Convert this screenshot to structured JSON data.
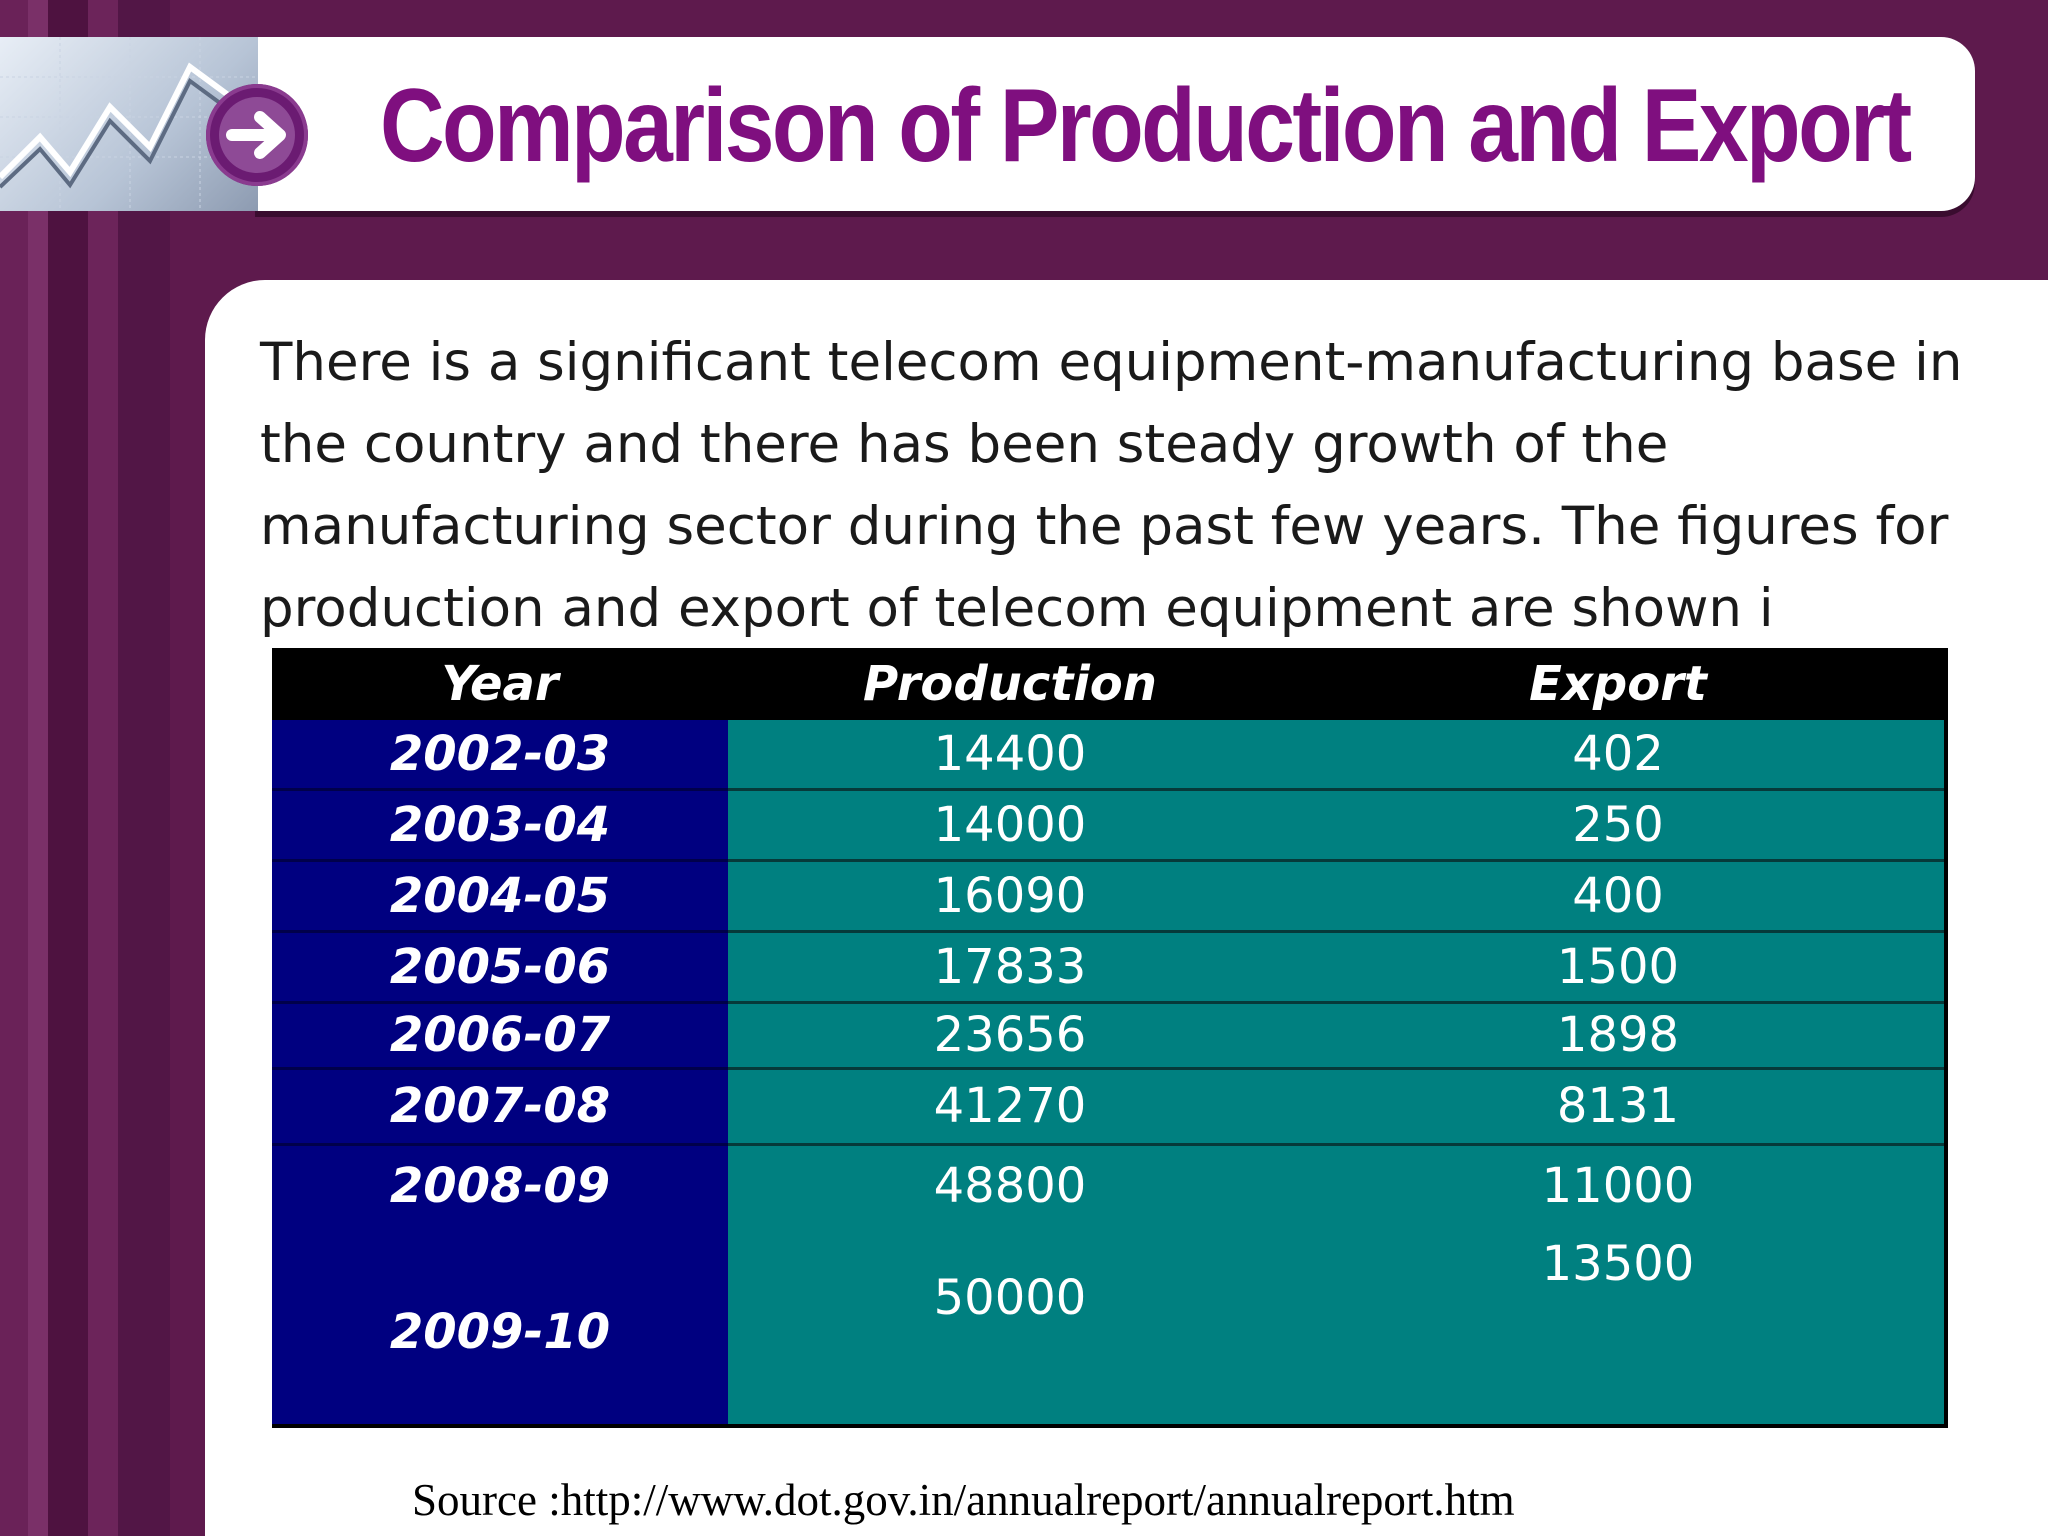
{
  "title": "Comparison of Production and Export",
  "body_text": "There is a significant telecom equipment-manufacturing base in the country and there has been steady growth of the manufacturing sector during the past few years. The figures for production and export of telecom equipment are shown i",
  "table": {
    "headers": [
      "Year",
      "Production",
      "Export"
    ],
    "rows": [
      {
        "year": "2002-03",
        "production": "14400",
        "export": "402"
      },
      {
        "year": "2003-04",
        "production": "14000",
        "export": "250"
      },
      {
        "year": "2004-05",
        "production": "16090",
        "export": "400"
      },
      {
        "year": "2005-06",
        "production": "17833",
        "export": "1500"
      },
      {
        "year": "2006-07",
        "production": "23656",
        "export": "1898"
      },
      {
        "year": "2007-08",
        "production": "41270",
        "export": "8131"
      },
      {
        "year": "2008-09",
        "production": "48800",
        "export": "11000"
      },
      {
        "year": "2009-10",
        "production": "50000",
        "export": "13500"
      }
    ]
  },
  "source": "Source :http://www.dot.gov.in/annualreport/annualreport.htm",
  "colors": {
    "background": "#5e1a4d",
    "title": "#7f0f7f",
    "year_column": "#000080",
    "value_columns": "#008080",
    "header_row": "#000000"
  },
  "icons": [
    "line-graph-icon",
    "arrow-right-circle-icon"
  ]
}
